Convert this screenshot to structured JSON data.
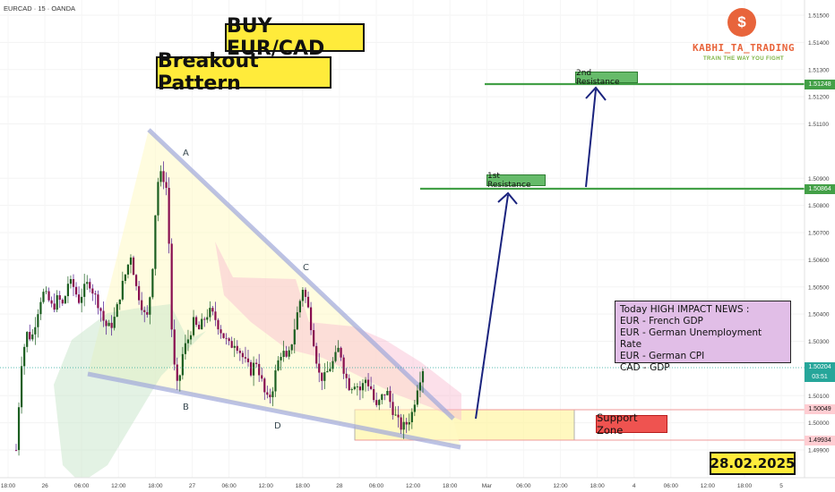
{
  "symbol": "EURCAD · 15 · OANDA",
  "title": "BUY EUR/CAD",
  "subtitle": "Breakout Pattern",
  "logo": {
    "name": "KABHI_TA_TRADING",
    "tagline": "TRAIN THE WAY YOU FIGHT",
    "icon": "dollar-icon",
    "symbol": "$"
  },
  "news": {
    "heading": "Today HIGH IMPACT NEWS :",
    "items": [
      "EUR - French GDP",
      "EUR - German Unemployment Rate",
      "EUR - German CPI",
      "CAD - GDP"
    ]
  },
  "date": "28.02.2025",
  "support_zone_label": "Support Zone",
  "resistance1_label": "1st Resistance",
  "resistance2_label": "2nd Resistance",
  "pattern_points": [
    "A",
    "B",
    "C",
    "D"
  ],
  "colors": {
    "title_bg": "#ffeb3b",
    "resistance": "#43a047",
    "support": "#ef5350",
    "arrow": "#1a237e",
    "news_bg": "#e1bee7"
  },
  "chart_data": {
    "type": "candlestick",
    "ylim": [
      1.4985,
      1.5155
    ],
    "y_ticks": [
      "1.51500",
      "1.51400",
      "1.51300",
      "1.51200",
      "1.51100",
      "1.50900",
      "1.50800",
      "1.50700",
      "1.50600",
      "1.50500",
      "1.50400",
      "1.50300",
      "1.50100",
      "1.50000",
      "1.49900"
    ],
    "x_ticks": [
      "18:00",
      "26",
      "06:00",
      "12:00",
      "18:00",
      "27",
      "06:00",
      "12:00",
      "18:00",
      "28",
      "06:00",
      "12:00",
      "18:00",
      "Mar",
      "06:00",
      "12:00",
      "18:00",
      "4",
      "06:00",
      "12:00",
      "18:00",
      "5"
    ],
    "price_tags": {
      "resistance2": "1.51248",
      "resistance1": "1.50864",
      "current": "1.50204",
      "countdown": "03:51",
      "support_top": "1.50049",
      "support_bottom": "1.49934"
    },
    "levels": {
      "resistance2": 1.51248,
      "resistance1": 1.50864,
      "current": 1.50204,
      "support_top": 1.50049,
      "support_bottom": 1.49934
    },
    "key_points": [
      {
        "label": "A",
        "price": 1.5094
      },
      {
        "label": "B",
        "price": 1.501
      },
      {
        "label": "C",
        "price": 1.505
      },
      {
        "label": "D",
        "price": 1.5003
      }
    ],
    "close_path": [
      1.499,
      1.5022,
      1.5033,
      1.5031,
      1.504,
      1.5048,
      1.5046,
      1.5042,
      1.5046,
      1.5043,
      1.5052,
      1.505,
      1.5045,
      1.5049,
      1.5052,
      1.5047,
      1.5043,
      1.5036,
      1.5035,
      1.5039,
      1.5048,
      1.5055,
      1.5062,
      1.505,
      1.5044,
      1.5037,
      1.5052,
      1.5088,
      1.5092,
      1.5085,
      1.5025,
      1.5012,
      1.5026,
      1.5031,
      1.5037,
      1.5034,
      1.5038,
      1.5041,
      1.5039,
      1.5035,
      1.5031,
      1.5028,
      1.503,
      1.5026,
      1.5022,
      1.5019,
      1.5023,
      1.5016,
      1.5008,
      1.5011,
      1.5021,
      1.5027,
      1.5022,
      1.5031,
      1.5041,
      1.505,
      1.5042,
      1.5031,
      1.5018,
      1.5016,
      1.502,
      1.5023,
      1.5028,
      1.5018,
      1.5013,
      1.5015,
      1.5012,
      1.5016,
      1.5013,
      1.5005,
      1.5009,
      1.5012,
      1.5006,
      1.5001,
      1.4998,
      1.5,
      1.5004,
      1.5014,
      1.502
    ]
  }
}
